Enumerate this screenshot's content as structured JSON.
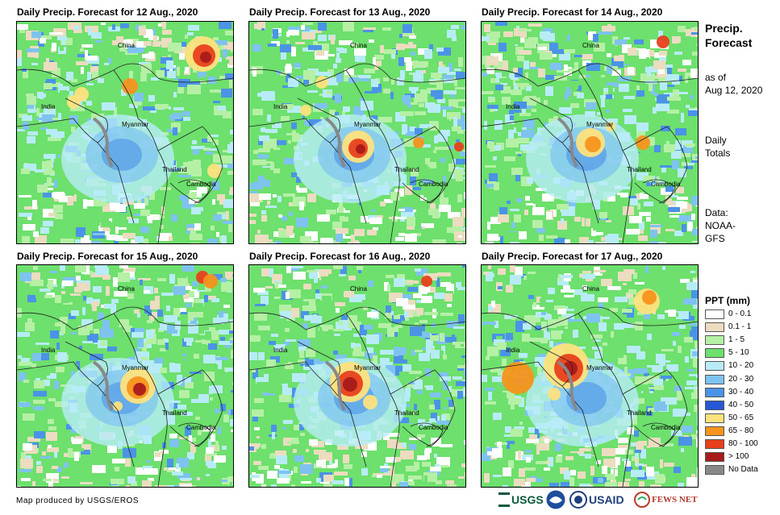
{
  "panels": [
    {
      "title": "Daily Precip. Forecast for 12 Aug., 2020"
    },
    {
      "title": "Daily Precip. Forecast for 13 Aug., 2020"
    },
    {
      "title": "Daily Precip. Forecast for 14 Aug., 2020"
    },
    {
      "title": "Daily Precip. Forecast for 15 Aug., 2020"
    },
    {
      "title": "Daily Precip. Forecast for 16 Aug., 2020"
    },
    {
      "title": "Daily Precip. Forecast for 17 Aug., 2020"
    }
  ],
  "place_labels": {
    "china": "China",
    "india": "India",
    "myanmar": "Myanmar",
    "thailand": "Thailand",
    "cambodia": "Cambodia"
  },
  "sidebar": {
    "title_line1": "Precip.",
    "title_line2": "Forecast",
    "asof_line1": "as of",
    "asof_line2": "Aug 12, 2020",
    "daily_line1": "Daily",
    "daily_line2": "Totals",
    "data_line1": "Data:",
    "data_line2": "NOAA-",
    "data_line3": "GFS"
  },
  "legend": {
    "title": "PPT (mm)",
    "items": [
      {
        "label": "0 - 0.1",
        "color": "#ffffff"
      },
      {
        "label": "0.1 - 1",
        "color": "#ecdcc0"
      },
      {
        "label": "1 - 5",
        "color": "#b5f0a5"
      },
      {
        "label": "5 - 10",
        "color": "#6de06d"
      },
      {
        "label": "10 - 20",
        "color": "#b7ecf7"
      },
      {
        "label": "20 - 30",
        "color": "#7ec3ef"
      },
      {
        "label": "30 - 40",
        "color": "#4b93e6"
      },
      {
        "label": "40 - 50",
        "color": "#2658d6"
      },
      {
        "label": "50 - 65",
        "color": "#fde27e"
      },
      {
        "label": "65 - 80",
        "color": "#f7941d"
      },
      {
        "label": "80 - 100",
        "color": "#e8401c"
      },
      {
        "label": "> 100",
        "color": "#a81b1b"
      },
      {
        "label": "No Data",
        "color": "#888888"
      }
    ]
  },
  "footer": {
    "credit": "Map produced by USGS/EROS"
  },
  "logos": {
    "usgs": "USGS",
    "usaid": "USAID",
    "fewsnet": "FEWS NET"
  }
}
